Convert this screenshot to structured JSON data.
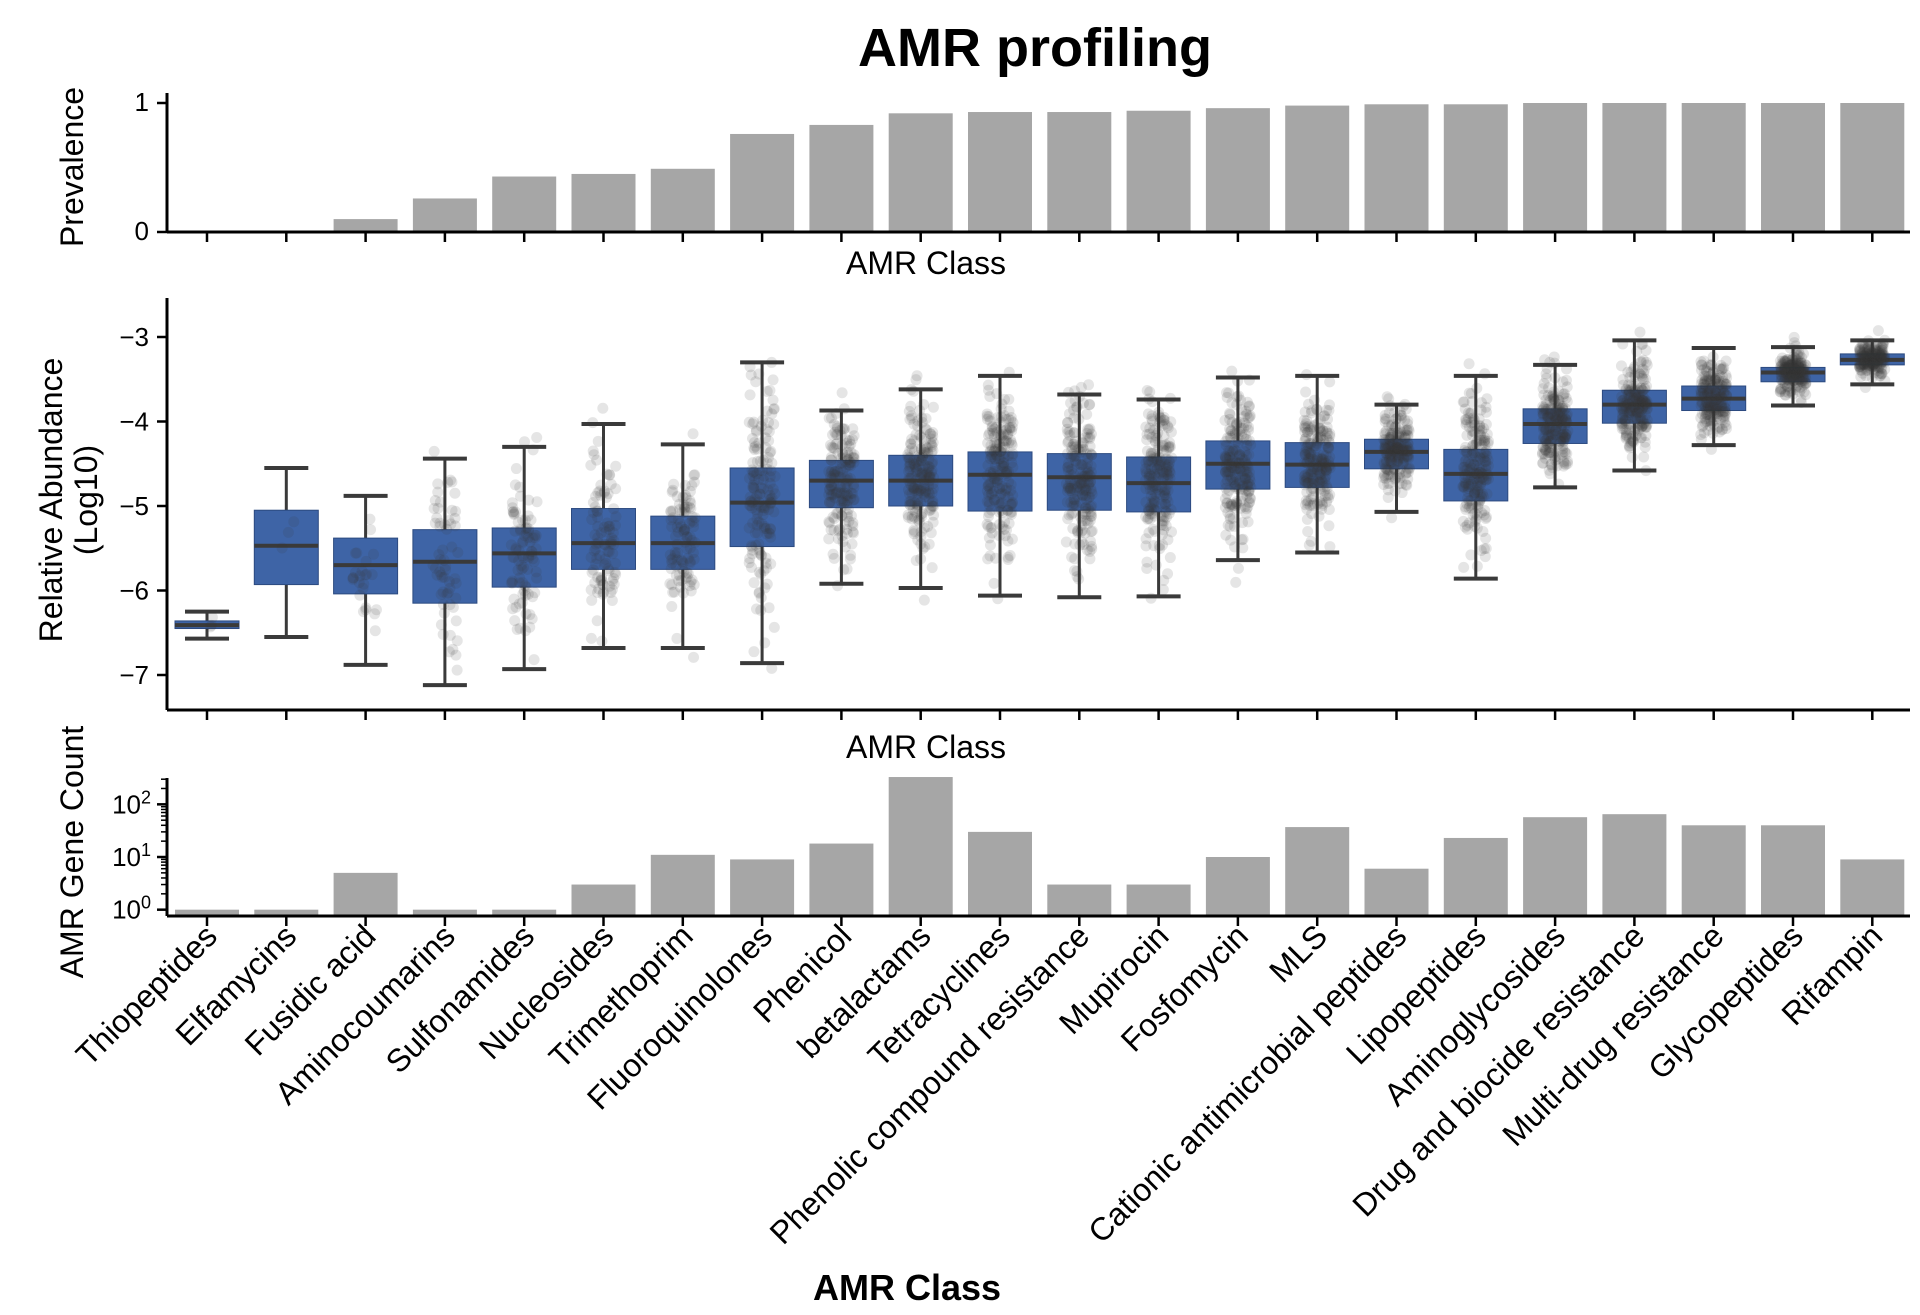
{
  "title": "AMR profiling",
  "chart_data": [
    {
      "type": "bar",
      "panel": "prevalence",
      "title": "AMR profiling",
      "ylabel": "Prevalence",
      "xlabel": "AMR Class",
      "ylim": [
        0,
        1
      ],
      "yticks": [
        "0",
        "1"
      ],
      "color": "#a6a6a6",
      "categories": [
        "Thiopeptides",
        "Elfamycins",
        "Fusidic acid",
        "Aminocoumarins",
        "Sulfonamides",
        "Nucleosides",
        "Trimethoprim",
        "Fluoroquinolones",
        "Phenicol",
        "betalactams",
        "Tetracyclines",
        "Phenolic compound resistance",
        "Mupirocin",
        "Fosfomycin",
        "MLS",
        "Cationic antimicrobial peptides",
        "Lipopeptides",
        "Aminoglycosides",
        "Drug and biocide resistance",
        "Multi-drug resistance",
        "Glycopeptides",
        "Rifampin"
      ],
      "values": [
        0.005,
        0.005,
        0.1,
        0.26,
        0.43,
        0.45,
        0.49,
        0.76,
        0.83,
        0.92,
        0.93,
        0.93,
        0.94,
        0.96,
        0.98,
        0.99,
        0.99,
        1.0,
        1.0,
        1.0,
        1.0,
        1.0
      ]
    },
    {
      "type": "box",
      "panel": "abundance",
      "ylabel": "Relative Abundance",
      "ylabel2": "(Log10)",
      "xlabel": "AMR Class",
      "ylim": [
        -7.45,
        -2.5
      ],
      "yticks": [
        -3,
        -4,
        -5,
        -6,
        -7
      ],
      "ytick_labels": [
        "−3",
        "−4",
        "−5",
        "−6",
        "−7"
      ],
      "box_color": "#3e64a6",
      "point_color": "#333333",
      "categories": [
        "Thiopeptides",
        "Elfamycins",
        "Fusidic acid",
        "Aminocoumarins",
        "Sulfonamides",
        "Nucleosides",
        "Trimethoprim",
        "Fluoroquinolones",
        "Phenicol",
        "betalactams",
        "Tetracyclines",
        "Phenolic compound resistance",
        "Mupirocin",
        "Fosfomycin",
        "MLS",
        "Cationic antimicrobial peptides",
        "Lipopeptides",
        "Aminoglycosides",
        "Drug and biocide resistance",
        "Multi-drug resistance",
        "Glycopeptides",
        "Rifampin"
      ],
      "boxes": [
        {
          "whislo": -6.57,
          "q1": -6.45,
          "med": -6.41,
          "q3": -6.36,
          "whishi": -6.25,
          "n": 3
        },
        {
          "whislo": -6.55,
          "q1": -5.93,
          "med": -5.47,
          "q3": -5.05,
          "whishi": -4.55,
          "n": 3
        },
        {
          "whislo": -6.88,
          "q1": -6.04,
          "med": -5.7,
          "q3": -5.38,
          "whishi": -4.88,
          "n": 25
        },
        {
          "whislo": -7.12,
          "q1": -6.15,
          "med": -5.66,
          "q3": -5.28,
          "whishi": -4.44,
          "n": 60
        },
        {
          "whislo": -6.93,
          "q1": -5.96,
          "med": -5.56,
          "q3": -5.26,
          "whishi": -4.3,
          "n": 90
        },
        {
          "whislo": -6.68,
          "q1": -5.75,
          "med": -5.44,
          "q3": -5.03,
          "whishi": -4.03,
          "n": 95
        },
        {
          "whislo": -6.68,
          "q1": -5.75,
          "med": -5.44,
          "q3": -5.12,
          "whishi": -4.27,
          "n": 100
        },
        {
          "whislo": -6.86,
          "q1": -5.48,
          "med": -4.96,
          "q3": -4.55,
          "whishi": -3.3,
          "n": 150
        },
        {
          "whislo": -5.92,
          "q1": -5.02,
          "med": -4.7,
          "q3": -4.46,
          "whishi": -3.87,
          "n": 160
        },
        {
          "whislo": -5.97,
          "q1": -5.0,
          "med": -4.7,
          "q3": -4.4,
          "whishi": -3.62,
          "n": 190
        },
        {
          "whislo": -6.06,
          "q1": -5.06,
          "med": -4.63,
          "q3": -4.36,
          "whishi": -3.46,
          "n": 190
        },
        {
          "whislo": -6.08,
          "q1": -5.05,
          "med": -4.66,
          "q3": -4.38,
          "whishi": -3.68,
          "n": 190
        },
        {
          "whislo": -6.07,
          "q1": -5.07,
          "med": -4.73,
          "q3": -4.42,
          "whishi": -3.74,
          "n": 190
        },
        {
          "whislo": -5.64,
          "q1": -4.8,
          "med": -4.5,
          "q3": -4.23,
          "whishi": -3.48,
          "n": 195
        },
        {
          "whislo": -5.55,
          "q1": -4.78,
          "med": -4.51,
          "q3": -4.25,
          "whishi": -3.46,
          "n": 195
        },
        {
          "whislo": -5.07,
          "q1": -4.56,
          "med": -4.36,
          "q3": -4.21,
          "whishi": -3.8,
          "n": 195
        },
        {
          "whislo": -5.86,
          "q1": -4.94,
          "med": -4.62,
          "q3": -4.33,
          "whishi": -3.46,
          "n": 195
        },
        {
          "whislo": -4.78,
          "q1": -4.26,
          "med": -4.03,
          "q3": -3.85,
          "whishi": -3.33,
          "n": 200
        },
        {
          "whislo": -4.58,
          "q1": -4.02,
          "med": -3.8,
          "q3": -3.63,
          "whishi": -3.04,
          "n": 200
        },
        {
          "whislo": -4.28,
          "q1": -3.87,
          "med": -3.73,
          "q3": -3.58,
          "whishi": -3.13,
          "n": 200
        },
        {
          "whislo": -3.81,
          "q1": -3.53,
          "med": -3.42,
          "q3": -3.36,
          "whishi": -3.12,
          "n": 200
        },
        {
          "whislo": -3.56,
          "q1": -3.33,
          "med": -3.27,
          "q3": -3.2,
          "whishi": -3.04,
          "n": 200
        }
      ]
    },
    {
      "type": "bar",
      "panel": "gene_count",
      "ylabel": "AMR Gene Count",
      "xlabel": "AMR Class",
      "yscale": "log",
      "ylim_log10": [
        -0.12,
        2.5
      ],
      "yticks_log10": [
        0,
        1,
        2
      ],
      "ytick_base": "10",
      "ytick_exps": [
        "0",
        "1",
        "2"
      ],
      "color": "#a6a6a6",
      "categories": [
        "Thiopeptides",
        "Elfamycins",
        "Fusidic acid",
        "Aminocoumarins",
        "Sulfonamides",
        "Nucleosides",
        "Trimethoprim",
        "Fluoroquinolones",
        "Phenicol",
        "betalactams",
        "Tetracyclines",
        "Phenolic compound resistance",
        "Mupirocin",
        "Fosfomycin",
        "MLS",
        "Cationic antimicrobial peptides",
        "Lipopeptides",
        "Aminoglycosides",
        "Drug and biocide resistance",
        "Multi-drug resistance",
        "Glycopeptides",
        "Rifampin"
      ],
      "values": [
        1,
        1,
        5,
        1,
        1,
        3,
        11,
        9,
        18,
        330,
        30,
        3,
        3,
        10,
        37,
        6,
        23,
        57,
        65,
        40,
        40,
        9
      ],
      "xtick_title": "AMR Class"
    }
  ]
}
